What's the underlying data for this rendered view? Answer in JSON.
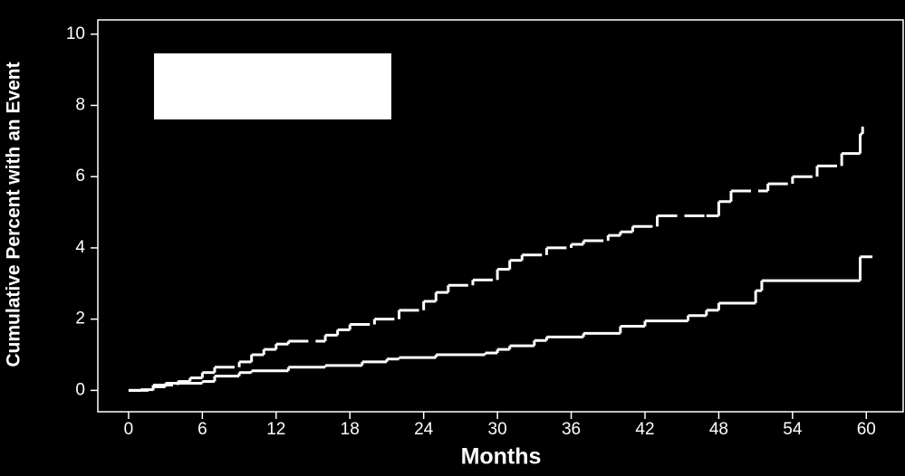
{
  "chart_data": {
    "type": "line",
    "step": true,
    "x_label": "Months",
    "y_label": "Cumulative Percent with an Event",
    "xlim": [
      -2.5,
      63
    ],
    "ylim": [
      -0.6,
      10.4
    ],
    "xticks": [
      0,
      6,
      12,
      18,
      24,
      30,
      36,
      42,
      48,
      54,
      60
    ],
    "yticks": [
      0,
      2,
      4,
      6,
      8,
      10
    ],
    "series": [
      {
        "color": "#ffffff",
        "dash": false,
        "x": [
          0,
          1,
          2,
          3,
          6,
          7,
          9,
          10,
          13,
          16,
          19,
          21,
          22,
          25,
          29,
          30,
          31,
          33,
          34,
          37,
          40,
          42,
          45.5,
          47,
          48,
          51,
          51.5,
          59.5,
          60.5
        ],
        "values": [
          0,
          0.02,
          0.1,
          0.2,
          0.25,
          0.4,
          0.5,
          0.55,
          0.65,
          0.7,
          0.8,
          0.88,
          0.92,
          1.0,
          1.05,
          1.15,
          1.25,
          1.4,
          1.5,
          1.6,
          1.8,
          1.95,
          2.1,
          2.25,
          2.45,
          2.8,
          3.08,
          3.75,
          3.75
        ]
      },
      {
        "color": "#ffffff",
        "dash": true,
        "x": [
          0,
          2,
          4,
          5,
          6,
          7,
          9,
          10,
          11,
          12,
          13,
          16,
          17,
          18,
          20,
          22,
          24,
          25,
          26,
          28,
          30,
          31,
          32,
          34,
          36,
          37,
          39,
          40,
          41,
          43,
          47,
          48,
          49,
          52,
          54,
          56,
          58,
          59.5,
          59.7
        ],
        "values": [
          0,
          0.15,
          0.25,
          0.35,
          0.5,
          0.65,
          0.8,
          1.0,
          1.15,
          1.3,
          1.38,
          1.55,
          1.7,
          1.85,
          2.0,
          2.25,
          2.5,
          2.75,
          2.95,
          3.1,
          3.4,
          3.65,
          3.8,
          4.0,
          4.1,
          4.2,
          4.35,
          4.45,
          4.6,
          4.9,
          4.9,
          5.3,
          5.6,
          5.8,
          6.0,
          6.3,
          6.65,
          7.2,
          7.4
        ]
      }
    ]
  }
}
